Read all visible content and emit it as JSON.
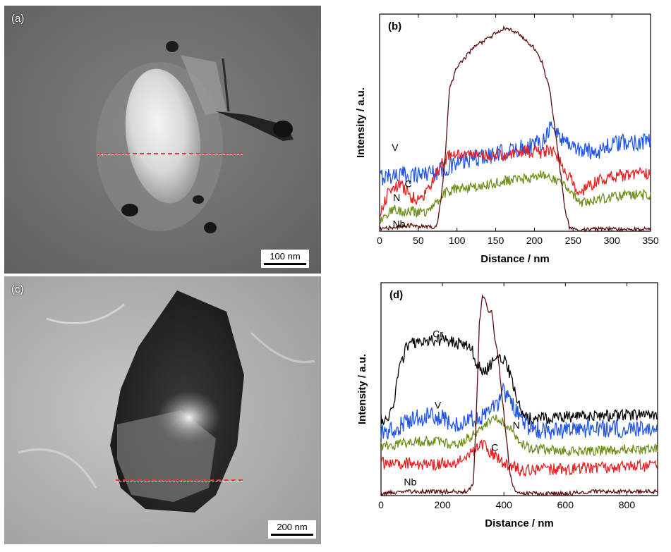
{
  "panel_a": {
    "label": "(a)",
    "scale_bar": "100 nm"
  },
  "panel_c": {
    "label": "(c)",
    "scale_bar": "200 nm"
  },
  "colors": {
    "V": "#2255e6",
    "C": "#e82020",
    "N": "#6f8f1a",
    "Nb": "#5a0d0d",
    "Cr": "#000000",
    "scan_line": "#ff3030"
  },
  "chart_data": [
    {
      "panel": "(b)",
      "type": "line",
      "xlabel": "Distance / nm",
      "ylabel": "Intensity / a.u.",
      "xlim": [
        0,
        350
      ],
      "ylim": [
        0,
        1.08
      ],
      "xticks": [
        0,
        50,
        100,
        150,
        200,
        250,
        300,
        350
      ],
      "grid": false,
      "series": [
        {
          "name": "V",
          "key": "V",
          "x": [
            0,
            20,
            40,
            60,
            75,
            90,
            110,
            130,
            150,
            170,
            190,
            210,
            220,
            240,
            260,
            280,
            300,
            320,
            340,
            350
          ],
          "y": [
            0.27,
            0.28,
            0.28,
            0.29,
            0.3,
            0.32,
            0.35,
            0.37,
            0.38,
            0.4,
            0.42,
            0.45,
            0.52,
            0.45,
            0.4,
            0.4,
            0.43,
            0.44,
            0.45,
            0.45
          ]
        },
        {
          "name": "C",
          "key": "C",
          "x": [
            0,
            5,
            10,
            15,
            20,
            25,
            30,
            40,
            50,
            60,
            70,
            80,
            90,
            100,
            130,
            160,
            190,
            210,
            220,
            230,
            240,
            250,
            260,
            280,
            300,
            320,
            350
          ],
          "y": [
            0.07,
            0.13,
            0.18,
            0.21,
            0.22,
            0.23,
            0.22,
            0.17,
            0.16,
            0.19,
            0.26,
            0.33,
            0.38,
            0.38,
            0.38,
            0.38,
            0.4,
            0.39,
            0.41,
            0.37,
            0.3,
            0.24,
            0.19,
            0.25,
            0.27,
            0.28,
            0.29
          ]
        },
        {
          "name": "N",
          "key": "N",
          "x": [
            0,
            10,
            20,
            30,
            40,
            50,
            60,
            70,
            80,
            90,
            100,
            130,
            160,
            190,
            210,
            220,
            230,
            240,
            250,
            260,
            280,
            300,
            320,
            350
          ],
          "y": [
            0.05,
            0.09,
            0.11,
            0.1,
            0.1,
            0.09,
            0.1,
            0.12,
            0.18,
            0.2,
            0.21,
            0.22,
            0.25,
            0.26,
            0.28,
            0.27,
            0.25,
            0.23,
            0.18,
            0.14,
            0.16,
            0.17,
            0.18,
            0.18
          ]
        },
        {
          "name": "Nb",
          "key": "Nb",
          "x": [
            0,
            20,
            40,
            60,
            70,
            75,
            80,
            85,
            90,
            100,
            110,
            120,
            140,
            160,
            170,
            180,
            200,
            210,
            220,
            230,
            240,
            245,
            250,
            260,
            300,
            350
          ],
          "y": [
            0.01,
            0.02,
            0.03,
            0.02,
            0.02,
            0.04,
            0.18,
            0.38,
            0.7,
            0.82,
            0.86,
            0.91,
            0.96,
            1.01,
            1.0,
            0.98,
            0.91,
            0.84,
            0.7,
            0.4,
            0.1,
            0.02,
            0.01,
            0.01,
            0.01,
            0.01
          ]
        }
      ],
      "series_labels": [
        {
          "text": "V",
          "series": "V",
          "at_x": 20,
          "at_y": 0.4
        },
        {
          "text": "C",
          "series": "C",
          "at_x": 37,
          "at_y": 0.22
        },
        {
          "text": "N",
          "series": "N",
          "at_x": 22,
          "at_y": 0.15
        },
        {
          "text": "Nb",
          "series": "Nb",
          "at_x": 25,
          "at_y": 0.02
        }
      ]
    },
    {
      "panel": "(d)",
      "type": "line",
      "xlabel": "Distance / nm",
      "ylabel": "Intensity / a.u.",
      "xlim": [
        0,
        900
      ],
      "ylim": [
        0,
        1.05
      ],
      "xticks": [
        0,
        200,
        400,
        600,
        800
      ],
      "grid": false,
      "series": [
        {
          "name": "Cr",
          "key": "Cr",
          "x": [
            0,
            20,
            40,
            60,
            80,
            100,
            150,
            200,
            250,
            290,
            310,
            330,
            350,
            370,
            400,
            420,
            440,
            460,
            480,
            500,
            600,
            700,
            800,
            900
          ],
          "y": [
            0.37,
            0.38,
            0.45,
            0.62,
            0.72,
            0.75,
            0.76,
            0.77,
            0.75,
            0.74,
            0.66,
            0.61,
            0.63,
            0.68,
            0.68,
            0.6,
            0.5,
            0.4,
            0.38,
            0.38,
            0.39,
            0.39,
            0.4,
            0.4
          ]
        },
        {
          "name": "V",
          "key": "V",
          "x": [
            0,
            50,
            100,
            150,
            200,
            250,
            300,
            350,
            390,
            400,
            410,
            440,
            460,
            480,
            500,
            600,
            700,
            800,
            900
          ],
          "y": [
            0.31,
            0.33,
            0.38,
            0.39,
            0.38,
            0.35,
            0.38,
            0.4,
            0.48,
            0.52,
            0.48,
            0.42,
            0.36,
            0.33,
            0.32,
            0.32,
            0.33,
            0.33,
            0.34
          ]
        },
        {
          "name": "N",
          "key": "N",
          "x": [
            0,
            50,
            100,
            150,
            200,
            250,
            300,
            350,
            380,
            400,
            420,
            440,
            460,
            500,
            600,
            700,
            800,
            900
          ],
          "y": [
            0.24,
            0.25,
            0.27,
            0.27,
            0.26,
            0.25,
            0.3,
            0.36,
            0.38,
            0.36,
            0.33,
            0.28,
            0.25,
            0.23,
            0.22,
            0.22,
            0.23,
            0.23
          ]
        },
        {
          "name": "C",
          "key": "C",
          "x": [
            0,
            50,
            100,
            150,
            200,
            250,
            300,
            320,
            340,
            360,
            380,
            400,
            420,
            460,
            500,
            600,
            700,
            800,
            900
          ],
          "y": [
            0.16,
            0.16,
            0.16,
            0.15,
            0.16,
            0.16,
            0.22,
            0.25,
            0.24,
            0.21,
            0.18,
            0.16,
            0.15,
            0.12,
            0.13,
            0.13,
            0.14,
            0.14,
            0.15
          ]
        },
        {
          "name": "Nb",
          "key": "Nb",
          "x": [
            0,
            100,
            200,
            280,
            300,
            310,
            320,
            330,
            340,
            350,
            360,
            370,
            380,
            390,
            400,
            410,
            420,
            430,
            440,
            460,
            500,
            600,
            700,
            800,
            900
          ],
          "y": [
            0.01,
            0.02,
            0.02,
            0.02,
            0.05,
            0.4,
            0.85,
            0.98,
            0.96,
            0.9,
            0.92,
            0.78,
            0.7,
            0.55,
            0.4,
            0.25,
            0.1,
            0.05,
            0.02,
            0.01,
            0.01,
            0.01,
            0.02,
            0.02,
            0.02
          ]
        }
      ],
      "series_labels": [
        {
          "text": "Cr",
          "series": "Cr",
          "at_x": 185,
          "at_y": 0.78
        },
        {
          "text": "V",
          "series": "V",
          "at_x": 185,
          "at_y": 0.43
        },
        {
          "text": "N",
          "series": "N",
          "at_x": 440,
          "at_y": 0.33
        },
        {
          "text": "C",
          "series": "C",
          "at_x": 370,
          "at_y": 0.22
        },
        {
          "text": "Nb",
          "series": "Nb",
          "at_x": 95,
          "at_y": 0.05
        }
      ]
    }
  ]
}
